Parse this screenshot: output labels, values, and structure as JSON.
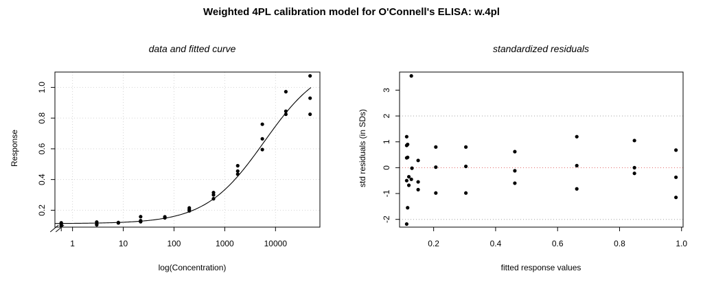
{
  "title": "Weighted 4PL calibration model for O'Connell's ELISA: w.4pl",
  "chart_data": [
    {
      "type": "scatter",
      "title": "data and fitted curve",
      "xlabel": "log(Concentration)",
      "ylabel": "Response",
      "x_scale": "log10",
      "xlim": [
        0.45,
        75000
      ],
      "ylim": [
        0.09,
        1.1
      ],
      "x_ticks": [
        1,
        10,
        100,
        1000,
        10000
      ],
      "x_tick_labels": [
        "1",
        "10",
        "100",
        "1000",
        "10000"
      ],
      "y_ticks": [
        0.2,
        0.4,
        0.6,
        0.8,
        1.0
      ],
      "y_tick_labels": [
        "0.2",
        "0.4",
        "0.6",
        "0.8",
        "1.0"
      ],
      "axis_break_at_x": 0.6,
      "grid": true,
      "points": [
        {
          "x": 0.6,
          "y": 0.1
        },
        {
          "x": 0.6,
          "y": 0.108
        },
        {
          "x": 0.6,
          "y": 0.118
        },
        {
          "x": 3,
          "y": 0.105
        },
        {
          "x": 3,
          "y": 0.113
        },
        {
          "x": 3,
          "y": 0.123
        },
        {
          "x": 8,
          "y": 0.117
        },
        {
          "x": 8,
          "y": 0.12
        },
        {
          "x": 22,
          "y": 0.125
        },
        {
          "x": 22,
          "y": 0.132
        },
        {
          "x": 22,
          "y": 0.158
        },
        {
          "x": 66,
          "y": 0.15
        },
        {
          "x": 66,
          "y": 0.157
        },
        {
          "x": 200,
          "y": 0.196
        },
        {
          "x": 200,
          "y": 0.205
        },
        {
          "x": 200,
          "y": 0.215
        },
        {
          "x": 600,
          "y": 0.275
        },
        {
          "x": 600,
          "y": 0.3
        },
        {
          "x": 600,
          "y": 0.315
        },
        {
          "x": 1800,
          "y": 0.435
        },
        {
          "x": 1800,
          "y": 0.455
        },
        {
          "x": 1800,
          "y": 0.49
        },
        {
          "x": 5500,
          "y": 0.595
        },
        {
          "x": 5500,
          "y": 0.665
        },
        {
          "x": 5500,
          "y": 0.76
        },
        {
          "x": 16000,
          "y": 0.825
        },
        {
          "x": 16000,
          "y": 0.845
        },
        {
          "x": 16000,
          "y": 0.972
        },
        {
          "x": 48000,
          "y": 0.825
        },
        {
          "x": 48000,
          "y": 0.93
        },
        {
          "x": 48000,
          "y": 1.075
        }
      ],
      "fitted_curve": {
        "model": "4PL",
        "bottom": 0.113,
        "top": 1.18,
        "ec50": 6000,
        "slope": 0.75,
        "x_range": [
          0.45,
          50000
        ]
      }
    },
    {
      "type": "scatter",
      "title": "standardized residuals",
      "xlabel": "fitted response values",
      "ylabel": "std residuals (in SDs)",
      "xlim": [
        0.09,
        1.005
      ],
      "ylim": [
        -2.3,
        3.7
      ],
      "x_ticks": [
        0.2,
        0.4,
        0.6,
        0.8,
        1.0
      ],
      "x_tick_labels": [
        "0.2",
        "0.4",
        "0.6",
        "0.8",
        "1.0"
      ],
      "y_ticks": [
        -2,
        -1,
        0,
        1,
        2,
        3
      ],
      "y_tick_labels": [
        "-2",
        "-1",
        "0",
        "1",
        "2",
        "3"
      ],
      "reference_lines": [
        {
          "y": 2,
          "color": "#a0a0a0"
        },
        {
          "y": 0,
          "color": "#e06060"
        },
        {
          "y": -2,
          "color": "#a0a0a0"
        }
      ],
      "points": [
        {
          "x": 0.113,
          "y": 1.2
        },
        {
          "x": 0.113,
          "y": 0.86
        },
        {
          "x": 0.113,
          "y": 0.38
        },
        {
          "x": 0.113,
          "y": -0.5
        },
        {
          "x": 0.113,
          "y": -2.18
        },
        {
          "x": 0.116,
          "y": 0.9
        },
        {
          "x": 0.116,
          "y": 0.4
        },
        {
          "x": 0.116,
          "y": -1.55
        },
        {
          "x": 0.12,
          "y": -0.35
        },
        {
          "x": 0.12,
          "y": -0.68
        },
        {
          "x": 0.128,
          "y": 3.55
        },
        {
          "x": 0.128,
          "y": -0.45
        },
        {
          "x": 0.13,
          "y": -0.02
        },
        {
          "x": 0.15,
          "y": 0.28
        },
        {
          "x": 0.15,
          "y": -0.55
        },
        {
          "x": 0.15,
          "y": -0.85
        },
        {
          "x": 0.207,
          "y": 0.8
        },
        {
          "x": 0.207,
          "y": 0.02
        },
        {
          "x": 0.207,
          "y": -0.98
        },
        {
          "x": 0.304,
          "y": 0.8
        },
        {
          "x": 0.304,
          "y": 0.05
        },
        {
          "x": 0.304,
          "y": -0.98
        },
        {
          "x": 0.462,
          "y": 0.62
        },
        {
          "x": 0.462,
          "y": -0.12
        },
        {
          "x": 0.462,
          "y": -0.6
        },
        {
          "x": 0.662,
          "y": 1.2
        },
        {
          "x": 0.662,
          "y": 0.08
        },
        {
          "x": 0.662,
          "y": -0.82
        },
        {
          "x": 0.848,
          "y": 1.05
        },
        {
          "x": 0.848,
          "y": 0.0
        },
        {
          "x": 0.848,
          "y": -0.22
        },
        {
          "x": 0.982,
          "y": 0.68
        },
        {
          "x": 0.982,
          "y": -0.37
        },
        {
          "x": 0.982,
          "y": -1.15
        }
      ]
    }
  ]
}
